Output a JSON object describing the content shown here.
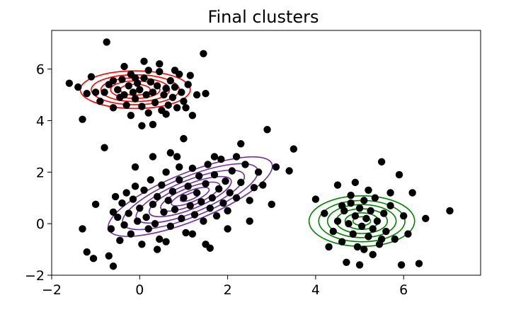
{
  "chart_data": {
    "type": "scatter",
    "title": "Final clusters",
    "xlabel": "",
    "ylabel": "",
    "xlim": [
      -2.0,
      7.75
    ],
    "ylim": [
      -2.0,
      7.5
    ],
    "xticks": [
      -2,
      0,
      2,
      4,
      6
    ],
    "yticks": [
      -2,
      0,
      2,
      4,
      6
    ],
    "grid": false,
    "point_color": "#000000",
    "clusters": [
      {
        "name": "cluster-red",
        "color": "#ff0000",
        "center": [
          -0.1,
          5.2
        ],
        "contour_radii": [
          [
            1.25,
            0.73
          ],
          [
            1.0,
            0.58
          ],
          [
            0.78,
            0.46
          ],
          [
            0.56,
            0.34
          ],
          [
            0.34,
            0.21
          ]
        ],
        "angle": 0
      },
      {
        "name": "cluster-purple",
        "color": "#7030a0",
        "center": [
          1.15,
          1.05
        ],
        "contour_radii": [
          [
            2.0,
            0.93
          ],
          [
            1.65,
            0.78
          ],
          [
            1.32,
            0.63
          ],
          [
            1.0,
            0.48
          ],
          [
            0.72,
            0.35
          ],
          [
            0.46,
            0.22
          ],
          [
            0.24,
            0.12
          ]
        ],
        "angle": 22
      },
      {
        "name": "cluster-green",
        "color": "#008000",
        "center": [
          5.05,
          0.1
        ],
        "contour_radii": [
          [
            1.2,
            0.98
          ],
          [
            0.98,
            0.8
          ],
          [
            0.78,
            0.64
          ],
          [
            0.58,
            0.48
          ],
          [
            0.38,
            0.32
          ],
          [
            0.2,
            0.17
          ]
        ],
        "angle": 0
      }
    ],
    "points": [
      [
        -1.6,
        5.45
      ],
      [
        -1.4,
        5.3
      ],
      [
        -1.3,
        4.05
      ],
      [
        -1.2,
        5.05
      ],
      [
        -1.1,
        5.7
      ],
      [
        -1.0,
        5.1
      ],
      [
        -0.8,
        5.1
      ],
      [
        -0.75,
        7.05
      ],
      [
        -0.7,
        5.4
      ],
      [
        -0.6,
        5.55
      ],
      [
        -0.5,
        5.2
      ],
      [
        -0.45,
        4.9
      ],
      [
        -0.4,
        5.6
      ],
      [
        -0.35,
        5.0
      ],
      [
        -0.3,
        4.6
      ],
      [
        -0.25,
        5.35
      ],
      [
        -0.2,
        5.8
      ],
      [
        -0.15,
        5.1
      ],
      [
        -0.1,
        4.85
      ],
      [
        -0.05,
        5.45
      ],
      [
        0.0,
        5.2
      ],
      [
        0.05,
        4.55
      ],
      [
        0.1,
        5.65
      ],
      [
        0.15,
        5.0
      ],
      [
        0.2,
        4.3
      ],
      [
        0.25,
        5.5
      ],
      [
        0.3,
        5.1
      ],
      [
        0.35,
        4.7
      ],
      [
        0.4,
        5.35
      ],
      [
        0.45,
        5.9
      ],
      [
        0.5,
        4.4
      ],
      [
        0.55,
        5.0
      ],
      [
        0.6,
        5.25
      ],
      [
        0.65,
        4.6
      ],
      [
        0.7,
        5.55
      ],
      [
        0.75,
        4.9
      ],
      [
        0.8,
        5.3
      ],
      [
        0.85,
        4.5
      ],
      [
        0.9,
        5.8
      ],
      [
        0.95,
        5.1
      ],
      [
        1.0,
        4.75
      ],
      [
        1.1,
        5.4
      ],
      [
        1.2,
        4.2
      ],
      [
        1.3,
        5.0
      ],
      [
        1.45,
        6.6
      ],
      [
        1.5,
        5.05
      ],
      [
        0.05,
        3.8
      ],
      [
        0.3,
        3.85
      ],
      [
        -0.2,
        4.2
      ],
      [
        0.6,
        4.25
      ],
      [
        -0.6,
        4.5
      ],
      [
        -0.9,
        4.75
      ],
      [
        0.1,
        6.3
      ],
      [
        0.45,
        6.2
      ],
      [
        -0.35,
        6.1
      ],
      [
        0.8,
        5.95
      ],
      [
        1.05,
        4.5
      ],
      [
        1.15,
        5.75
      ],
      [
        -0.1,
        5.65
      ],
      [
        0.2,
        5.95
      ],
      [
        -1.3,
        -0.2
      ],
      [
        -1.2,
        -1.1
      ],
      [
        -1.05,
        -1.35
      ],
      [
        -1.0,
        0.75
      ],
      [
        -0.8,
        2.95
      ],
      [
        -0.7,
        -1.25
      ],
      [
        -0.65,
        -0.2
      ],
      [
        -0.6,
        0.45
      ],
      [
        -0.6,
        -1.65
      ],
      [
        -0.55,
        1.05
      ],
      [
        -0.5,
        0.25
      ],
      [
        -0.45,
        -0.65
      ],
      [
        -0.4,
        0.8
      ],
      [
        -0.35,
        -0.05
      ],
      [
        -0.3,
        1.2
      ],
      [
        -0.25,
        0.4
      ],
      [
        -0.2,
        -0.4
      ],
      [
        -0.15,
        0.95
      ],
      [
        -0.1,
        1.45
      ],
      [
        -0.05,
        0.1
      ],
      [
        0.0,
        0.6
      ],
      [
        0.05,
        -0.8
      ],
      [
        0.1,
        1.3
      ],
      [
        0.15,
        0.25
      ],
      [
        0.2,
        -0.2
      ],
      [
        0.25,
        1.7
      ],
      [
        0.3,
        0.75
      ],
      [
        0.35,
        0.0
      ],
      [
        0.4,
        1.05
      ],
      [
        0.45,
        -0.6
      ],
      [
        0.5,
        1.5
      ],
      [
        0.55,
        0.45
      ],
      [
        0.6,
        2.0
      ],
      [
        0.65,
        0.9
      ],
      [
        0.7,
        -0.1
      ],
      [
        0.75,
        1.25
      ],
      [
        0.8,
        0.55
      ],
      [
        0.85,
        2.6
      ],
      [
        0.9,
        1.7
      ],
      [
        0.95,
        0.2
      ],
      [
        1.0,
        1.0
      ],
      [
        1.05,
        -0.35
      ],
      [
        1.1,
        1.45
      ],
      [
        1.15,
        0.7
      ],
      [
        1.2,
        2.15
      ],
      [
        1.25,
        0.35
      ],
      [
        1.3,
        1.2
      ],
      [
        1.35,
        1.85
      ],
      [
        1.4,
        0.85
      ],
      [
        1.45,
        0.1
      ],
      [
        1.5,
        1.55
      ],
      [
        1.55,
        2.3
      ],
      [
        1.6,
        0.6
      ],
      [
        1.65,
        1.0
      ],
      [
        1.7,
        1.9
      ],
      [
        1.75,
        0.3
      ],
      [
        1.8,
        1.35
      ],
      [
        1.85,
        2.5
      ],
      [
        1.9,
        0.8
      ],
      [
        1.95,
        1.65
      ],
      [
        2.0,
        0.5
      ],
      [
        2.05,
        1.2
      ],
      [
        2.1,
        2.05
      ],
      [
        2.2,
        1.0
      ],
      [
        2.3,
        1.6
      ],
      [
        2.4,
        2.3
      ],
      [
        2.5,
        0.9
      ],
      [
        2.6,
        1.4
      ],
      [
        2.7,
        2.0
      ],
      [
        2.8,
        1.5
      ],
      [
        2.9,
        3.65
      ],
      [
        2.3,
        3.1
      ],
      [
        3.0,
        0.75
      ],
      [
        3.1,
        2.2
      ],
      [
        3.5,
        2.9
      ],
      [
        3.4,
        2.05
      ],
      [
        1.5,
        -0.8
      ],
      [
        1.6,
        -0.95
      ],
      [
        2.5,
        0.1
      ],
      [
        0.4,
        -1.0
      ],
      [
        1.0,
        3.3
      ],
      [
        0.7,
        2.75
      ],
      [
        0.3,
        2.6
      ],
      [
        -0.1,
        2.2
      ],
      [
        2.2,
        2.6
      ],
      [
        1.2,
        -0.4
      ],
      [
        0.6,
        -0.7
      ],
      [
        0.9,
        2.2
      ],
      [
        1.7,
        2.6
      ],
      [
        2.0,
        -0.2
      ],
      [
        4.0,
        0.95
      ],
      [
        4.2,
        0.4
      ],
      [
        4.4,
        -0.3
      ],
      [
        4.5,
        0.1
      ],
      [
        4.6,
        -0.7
      ],
      [
        4.65,
        0.5
      ],
      [
        4.7,
        -1.5
      ],
      [
        4.75,
        0.0
      ],
      [
        4.8,
        0.8
      ],
      [
        4.85,
        -0.4
      ],
      [
        4.9,
        0.3
      ],
      [
        4.95,
        -0.9
      ],
      [
        5.0,
        0.6
      ],
      [
        5.05,
        -0.1
      ],
      [
        5.1,
        0.9
      ],
      [
        5.15,
        0.2
      ],
      [
        5.2,
        -0.5
      ],
      [
        5.25,
        0.5
      ],
      [
        5.3,
        -0.2
      ],
      [
        5.35,
        1.0
      ],
      [
        5.4,
        0.1
      ],
      [
        5.45,
        -0.8
      ],
      [
        5.5,
        2.4
      ],
      [
        5.55,
        0.4
      ],
      [
        5.6,
        -0.3
      ],
      [
        5.7,
        0.7
      ],
      [
        5.8,
        -0.6
      ],
      [
        5.9,
        1.9
      ],
      [
        6.0,
        0.3
      ],
      [
        6.1,
        -0.4
      ],
      [
        5.95,
        -1.6
      ],
      [
        6.2,
        1.2
      ],
      [
        6.35,
        -1.55
      ],
      [
        6.5,
        0.2
      ],
      [
        7.05,
        0.5
      ],
      [
        5.0,
        -1.6
      ],
      [
        4.5,
        1.5
      ],
      [
        5.2,
        1.3
      ],
      [
        4.3,
        -0.9
      ],
      [
        5.7,
        1.2
      ],
      [
        4.8,
        1.1
      ],
      [
        5.3,
        -1.2
      ],
      [
        4.6,
        0.7
      ],
      [
        5.1,
        -1.0
      ],
      [
        4.9,
        1.6
      ],
      [
        5.5,
        -0.6
      ]
    ]
  }
}
